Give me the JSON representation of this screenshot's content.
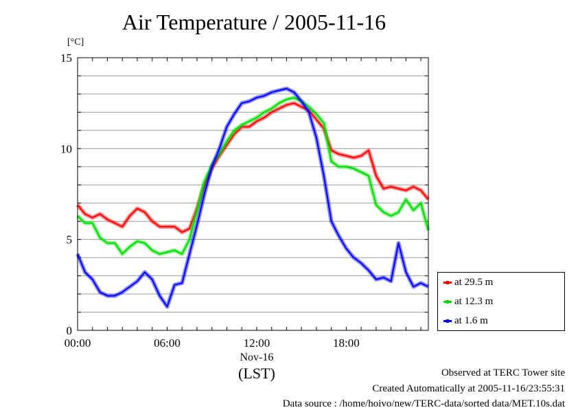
{
  "header": {
    "title": "Air Temperature / 2005-11-16",
    "unit": "[°C]"
  },
  "footer": {
    "line1": "Observed at TERC Tower site",
    "line2": "Created Automatically at 2005-11-16/23:55:31",
    "line3": "Data source : /home/hoivo/new/TERC-data/sorted  data/MET.10s.dat"
  },
  "colors": {
    "red": "#ff0000",
    "green": "#00dd00",
    "blue": "#0000ff"
  },
  "chart_data": {
    "type": "line",
    "title": "Air Temperature / 2005-11-16",
    "ylabel": "[°C]",
    "xlabel": "(LST)",
    "xlim": [
      0,
      23.5
    ],
    "ylim": [
      0,
      15
    ],
    "yticks": [
      0,
      5,
      10,
      15
    ],
    "xticks": [
      {
        "x": 0,
        "label": "00:00"
      },
      {
        "x": 6,
        "label": "06:00"
      },
      {
        "x": 12,
        "label": "12:00"
      },
      {
        "x": 18,
        "label": "18:00"
      }
    ],
    "date_label": "Nov-16",
    "grid": true,
    "legend_position": "right",
    "series": [
      {
        "name": "at 29.5 m",
        "color": "#ff0000",
        "x": [
          0,
          0.5,
          1,
          1.5,
          2,
          2.5,
          3,
          3.5,
          4,
          4.5,
          5,
          5.5,
          6,
          6.5,
          7,
          7.5,
          8,
          8.5,
          9,
          9.5,
          10,
          10.5,
          11,
          11.5,
          12,
          12.5,
          13,
          13.5,
          14,
          14.5,
          15,
          15.5,
          16,
          16.5,
          17,
          17.5,
          18,
          18.5,
          19,
          19.5,
          20,
          20.5,
          21,
          21.5,
          22,
          22.5,
          23,
          23.5
        ],
        "values": [
          6.9,
          6.4,
          6.2,
          6.4,
          6.1,
          5.9,
          5.7,
          6.3,
          6.7,
          6.5,
          6.0,
          5.7,
          5.7,
          5.7,
          5.4,
          5.6,
          6.7,
          8.0,
          8.9,
          9.6,
          10.2,
          10.8,
          11.2,
          11.2,
          11.5,
          11.7,
          12.0,
          12.2,
          12.4,
          12.5,
          12.3,
          12.1,
          11.6,
          11.1,
          9.9,
          9.7,
          9.6,
          9.5,
          9.6,
          9.9,
          8.5,
          7.8,
          7.9,
          7.8,
          7.7,
          7.9,
          7.7,
          7.2
        ]
      },
      {
        "name": "at 12.3 m",
        "color": "#00dd00",
        "x": [
          0,
          0.5,
          1,
          1.5,
          2,
          2.5,
          3,
          3.5,
          4,
          4.5,
          5,
          5.5,
          6,
          6.5,
          7,
          7.5,
          8,
          8.5,
          9,
          9.5,
          10,
          10.5,
          11,
          11.5,
          12,
          12.5,
          13,
          13.5,
          14,
          14.5,
          15,
          15.5,
          16,
          16.5,
          17,
          17.5,
          18,
          18.5,
          19,
          19.5,
          20,
          20.5,
          21,
          21.5,
          22,
          22.5,
          23,
          23.5
        ],
        "values": [
          6.3,
          5.9,
          5.9,
          5.1,
          4.8,
          4.8,
          4.2,
          4.6,
          4.9,
          4.8,
          4.4,
          4.2,
          4.3,
          4.4,
          4.2,
          5.0,
          6.6,
          8.2,
          9.1,
          9.7,
          10.4,
          11.0,
          11.3,
          11.5,
          11.7,
          12.0,
          12.2,
          12.5,
          12.7,
          12.8,
          12.6,
          12.3,
          11.9,
          11.4,
          9.3,
          9.0,
          9.0,
          8.9,
          8.7,
          8.5,
          6.9,
          6.5,
          6.3,
          6.5,
          7.2,
          6.6,
          7.0,
          5.5
        ]
      },
      {
        "name": "at 1.6 m",
        "color": "#0000ff",
        "x": [
          0,
          0.5,
          1,
          1.5,
          2,
          2.5,
          3,
          3.5,
          4,
          4.5,
          5,
          5.5,
          6,
          6.5,
          7,
          7.5,
          8,
          8.5,
          9,
          9.5,
          10,
          10.5,
          11,
          11.5,
          12,
          12.5,
          13,
          13.5,
          14,
          14.5,
          15,
          15.5,
          16,
          16.5,
          17,
          17.5,
          18,
          18.5,
          19,
          19.5,
          20,
          20.5,
          21,
          21.5,
          22,
          22.5,
          23,
          23.5
        ],
        "values": [
          4.2,
          3.2,
          2.8,
          2.1,
          1.9,
          1.9,
          2.1,
          2.4,
          2.7,
          3.2,
          2.8,
          1.9,
          1.3,
          2.5,
          2.6,
          4.2,
          5.8,
          7.5,
          9.0,
          10.0,
          11.2,
          11.9,
          12.5,
          12.6,
          12.8,
          12.9,
          13.1,
          13.2,
          13.3,
          13.1,
          12.6,
          12.0,
          10.6,
          8.5,
          6.0,
          5.2,
          4.5,
          4.0,
          3.7,
          3.3,
          2.8,
          2.9,
          2.7,
          4.8,
          3.2,
          2.4,
          2.6,
          2.4
        ]
      }
    ]
  }
}
